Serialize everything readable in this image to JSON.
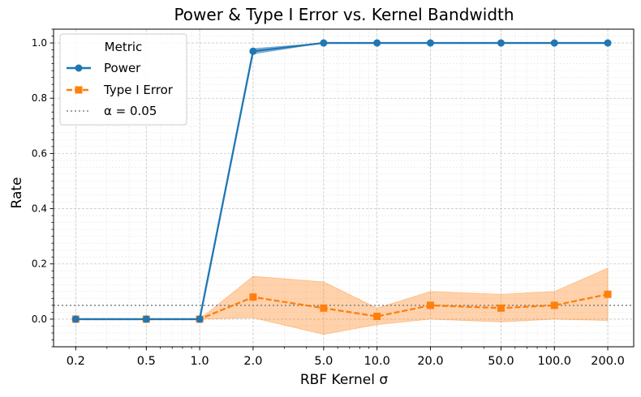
{
  "chart_data": {
    "type": "line",
    "title": "Power & Type I Error vs. Kernel Bandwidth",
    "xlabel": "RBF Kernel σ",
    "ylabel": "Rate",
    "x_scale": "log",
    "x": [
      0.2,
      0.5,
      1.0,
      2.0,
      5.0,
      10.0,
      20.0,
      50.0,
      100.0,
      200.0
    ],
    "x_tick_labels": [
      "0.2",
      "0.5",
      "1.0",
      "2.0",
      "5.0",
      "10.0",
      "20.0",
      "50.0",
      "100.0",
      "200.0"
    ],
    "xlim": [
      0.15,
      280
    ],
    "ylim": [
      -0.1,
      1.05
    ],
    "y_ticks": [
      0.0,
      0.2,
      0.4,
      0.6,
      0.8,
      1.0
    ],
    "y_tick_labels": [
      "0.0",
      "0.2",
      "0.4",
      "0.6",
      "0.8",
      "1.0"
    ],
    "grid": true,
    "legend_title": "Metric",
    "legend_position": "top-left",
    "series": [
      {
        "name": "Power",
        "color": "#1f77b4",
        "marker": "circle",
        "line_style": "solid",
        "values": [
          0.0,
          0.0,
          0.0,
          0.97,
          1.0,
          1.0,
          1.0,
          1.0,
          1.0,
          1.0
        ],
        "band_lower": [
          0.0,
          0.0,
          0.0,
          0.96,
          1.0,
          1.0,
          1.0,
          1.0,
          1.0,
          1.0
        ],
        "band_upper": [
          0.0,
          0.0,
          0.0,
          0.98,
          1.0,
          1.0,
          1.0,
          1.0,
          1.0,
          1.0
        ]
      },
      {
        "name": "Type I Error",
        "color": "#ff7f0e",
        "marker": "square",
        "line_style": "dashed",
        "values": [
          0.0,
          0.0,
          0.0,
          0.08,
          0.04,
          0.01,
          0.05,
          0.04,
          0.05,
          0.09
        ],
        "band_lower": [
          0.0,
          0.0,
          0.0,
          0.005,
          -0.055,
          -0.02,
          0.0,
          -0.01,
          0.0,
          -0.005
        ],
        "band_upper": [
          0.0,
          0.0,
          0.0,
          0.155,
          0.135,
          0.04,
          0.1,
          0.09,
          0.1,
          0.185
        ]
      }
    ],
    "reference_line": {
      "name": "α = 0.05",
      "y": 0.05,
      "color": "#808080",
      "line_style": "dotted"
    }
  }
}
